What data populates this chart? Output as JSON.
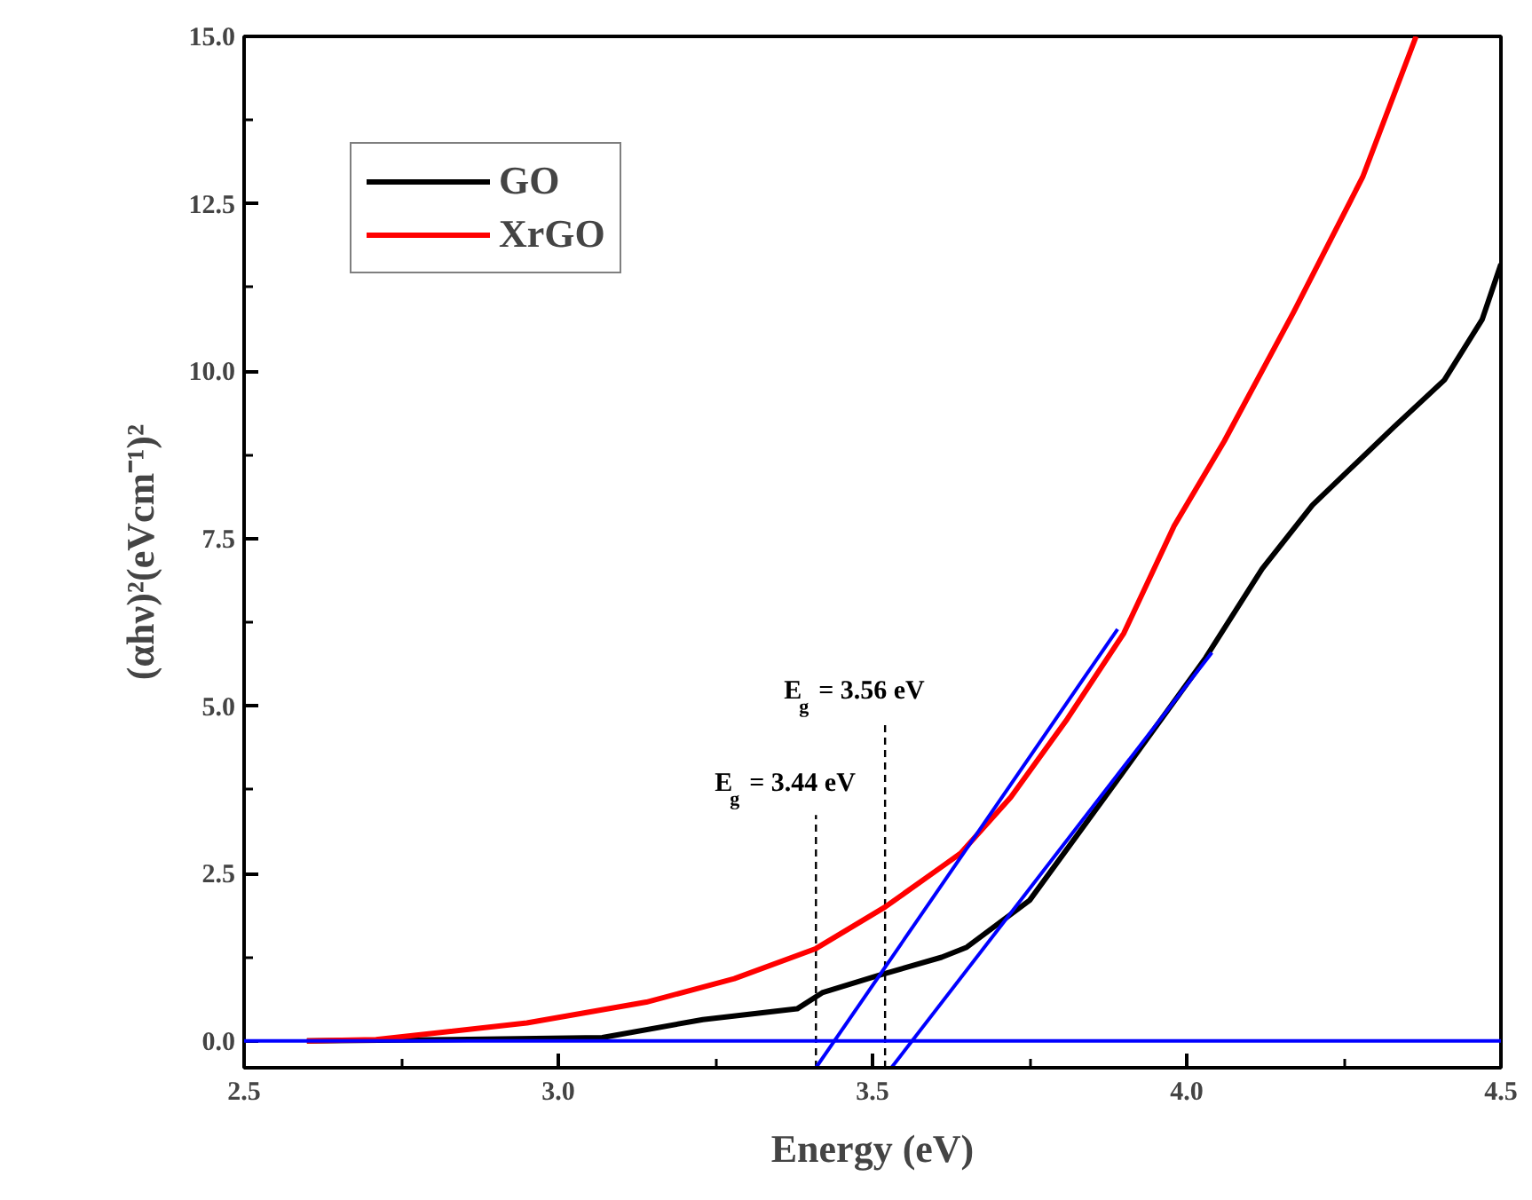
{
  "chart_data": {
    "type": "line",
    "xlabel": "Energy (eV)",
    "ylabel": "(αhν)²(eVcm⁻¹)²",
    "xlim": [
      2.5,
      4.5
    ],
    "ylim": [
      -0.4,
      15.0
    ],
    "xticks": [
      2.5,
      {
        "value": 3,
        "label": "3.0"
      },
      3.5,
      {
        "value": 4,
        "label": "4.0"
      },
      4.5
    ],
    "yticks": [
      {
        "value": 0,
        "label": "0.0"
      },
      2.5,
      {
        "value": 5,
        "label": "5.0"
      },
      7.5,
      {
        "value": 10,
        "label": "10.0"
      },
      12.5,
      {
        "value": 15,
        "label": "15.0"
      }
    ],
    "grid": false,
    "legend": "top left",
    "line_style": "solid",
    "marker": "none",
    "series": [
      {
        "name": "GO",
        "color": "#000000",
        "x": [
          2.6,
          2.83,
          3.07,
          3.23,
          3.38,
          3.42,
          3.51,
          3.61,
          3.65,
          3.75,
          3.89,
          4.03,
          4.12,
          4.2,
          4.33,
          4.41,
          4.47,
          4.5
        ],
        "values": [
          0.0,
          0.02,
          0.05,
          0.32,
          0.48,
          0.72,
          0.98,
          1.25,
          1.4,
          2.1,
          3.9,
          5.72,
          7.05,
          8.0,
          9.17,
          9.87,
          10.77,
          11.6
        ]
      },
      {
        "name": "XrGO",
        "color": "#ff0000",
        "x": [
          2.6,
          2.71,
          2.95,
          3.14,
          3.28,
          3.41,
          3.52,
          3.61,
          3.64,
          3.72,
          3.81,
          3.9,
          3.98,
          4.06,
          4.17,
          4.28,
          4.365
        ],
        "values": [
          0.0,
          0.02,
          0.27,
          0.58,
          0.93,
          1.38,
          2.0,
          2.6,
          2.8,
          3.64,
          4.81,
          6.09,
          7.69,
          8.96,
          10.88,
          12.9,
          15.0
        ]
      },
      {
        "type": "line",
        "color": "#0000ff",
        "x": [
          3.41,
          3.89
        ],
        "values": [
          -0.4,
          6.15
        ]
      },
      {
        "type": "line",
        "color": "#0000ff",
        "x": [
          3.53,
          4.04
        ],
        "values": [
          -0.4,
          5.8
        ]
      }
    ],
    "ref_lines": [
      {
        "axis": "y",
        "value": 0,
        "color": "#0000ff",
        "line_style": "solid"
      },
      {
        "axis": "x",
        "value": 3.41,
        "color": "#000000",
        "line_style": "dashed"
      },
      {
        "axis": "x",
        "value": 3.52,
        "color": "#000000",
        "line_style": "dashed"
      }
    ],
    "annotations": [
      "E$_{g}$ = 3.44 eV",
      "E$_{g}$ = 3.56 eV"
    ]
  }
}
